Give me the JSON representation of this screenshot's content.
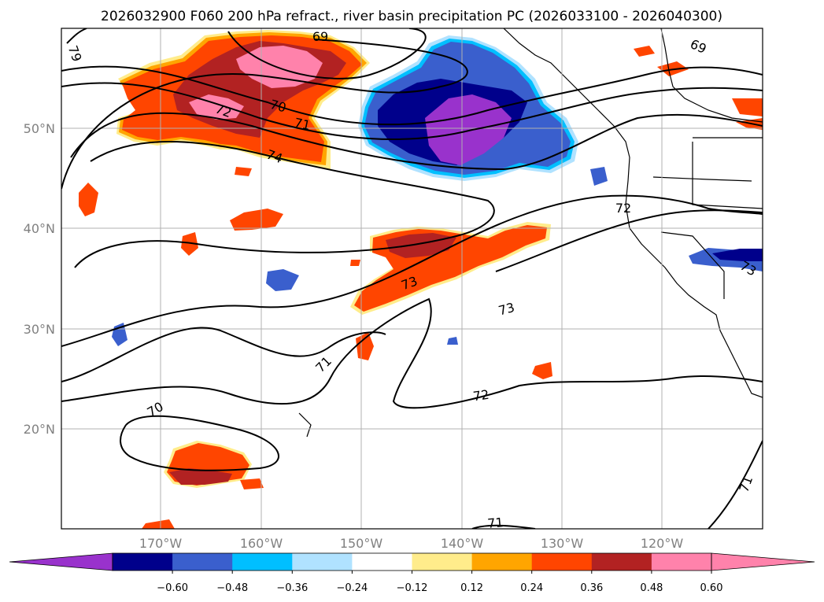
{
  "title": "2026032900 F060 200 hPa refract., river basin precipitation PC (2026033100 - 2026040300)",
  "axes": {
    "lat_labels": [
      "50°N",
      "40°N",
      "30°N",
      "20°N"
    ],
    "lon_labels": [
      "170°W",
      "160°W",
      "150°W",
      "140°W",
      "130°W",
      "120°W"
    ]
  },
  "colorbar": {
    "colors": [
      "#9932cc",
      "#00008b",
      "#3a5fcd",
      "#00bfff",
      "#b0e2ff",
      "#ffffff",
      "#ffec8b",
      "#ffa500",
      "#ff4500",
      "#b22222",
      "#ff82ab",
      "#ff82ab"
    ],
    "under_color": "#9932cc",
    "over_color": "#ff82ab",
    "tick_labels": [
      "−0.60",
      "−0.48",
      "−0.36",
      "−0.24",
      "−0.12",
      "0.12",
      "0.24",
      "0.36",
      "0.48",
      "0.60"
    ]
  },
  "contours": {
    "labels": [
      {
        "text": "69"
      },
      {
        "text": "69"
      },
      {
        "text": "79"
      },
      {
        "text": "72"
      },
      {
        "text": "70"
      },
      {
        "text": "71"
      },
      {
        "text": "74"
      },
      {
        "text": "72"
      },
      {
        "text": "73"
      },
      {
        "text": "73"
      },
      {
        "text": "73"
      },
      {
        "text": "71"
      },
      {
        "text": "72"
      },
      {
        "text": "70"
      },
      {
        "text": "71"
      },
      {
        "text": "71"
      }
    ]
  }
}
